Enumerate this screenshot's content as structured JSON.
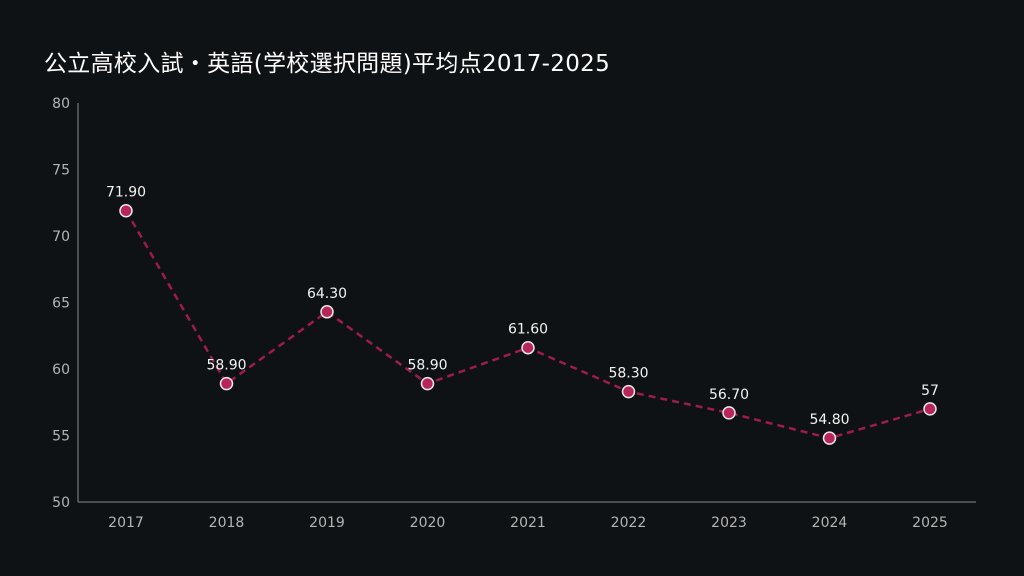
{
  "chart_data": {
    "type": "line",
    "title": "公立高校入試・英語(学校選択問題)平均点2017-2025",
    "xlabel": "",
    "ylabel": "",
    "categories": [
      "2017",
      "2018",
      "2019",
      "2020",
      "2021",
      "2022",
      "2023",
      "2024",
      "2025"
    ],
    "series": [
      {
        "values": [
          71.9,
          58.9,
          64.3,
          58.9,
          61.6,
          58.3,
          56.7,
          54.8,
          57
        ],
        "data_labels": [
          "71.90",
          "58.90",
          "64.30",
          "58.90",
          "61.60",
          "58.30",
          "56.70",
          "54.80",
          "57"
        ]
      }
    ],
    "ylim": [
      50,
      80
    ],
    "yticks": [
      "50",
      "55",
      "60",
      "65",
      "70",
      "75",
      "80"
    ],
    "grid": false,
    "legend": "none",
    "line_style": "dashed",
    "colors": {
      "line": "#9e1c49",
      "marker_fill": "#b8255a",
      "marker_stroke": "#e7e7e7",
      "axis": "#8a8a8a",
      "background": "#0f1214",
      "title": "#ffffff"
    }
  }
}
